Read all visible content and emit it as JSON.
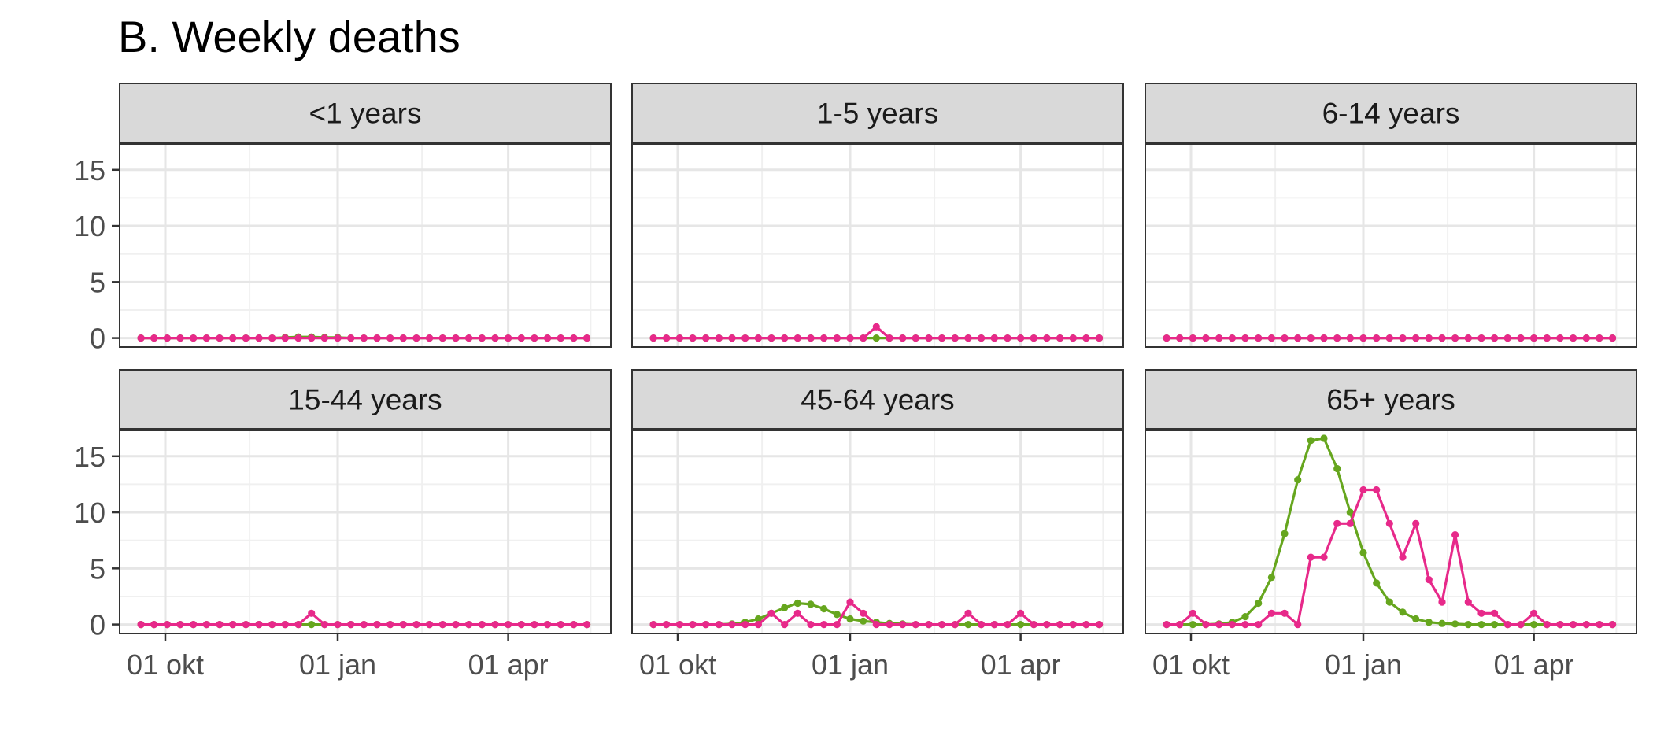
{
  "chart_data": {
    "type": "line",
    "title": "B. Weekly deaths",
    "xlabel": "",
    "ylabel": "",
    "x_tick_labels": [
      "01 okt",
      "01 jan",
      "01 apr"
    ],
    "y_ticks": [
      0,
      5,
      10,
      15
    ],
    "ylim": [
      -0.8,
      17.3
    ],
    "grid": true,
    "x_start": "2023-09-18",
    "x_step_days": 7,
    "colors": {
      "green": "#66a61e",
      "pink": "#e7298a"
    },
    "panels": [
      {
        "label": "<1 years",
        "series": [
          {
            "color": "#66a61e",
            "values": [
              0,
              0,
              0,
              0,
              0,
              0,
              0,
              0,
              0,
              0,
              0,
              0.05,
              0.1,
              0.1,
              0.05,
              0.05,
              0,
              0,
              0,
              0,
              0,
              0,
              0,
              0,
              0,
              0,
              0,
              0,
              0,
              0,
              0,
              0,
              0,
              0,
              0
            ]
          },
          {
            "color": "#e7298a",
            "values": [
              0,
              0,
              0,
              0,
              0,
              0,
              0,
              0,
              0,
              0,
              0,
              0,
              0,
              0,
              0,
              0,
              0,
              0,
              0,
              0,
              0,
              0,
              0,
              0,
              0,
              0,
              0,
              0,
              0,
              0,
              0,
              0,
              0,
              0,
              0
            ]
          }
        ]
      },
      {
        "label": "1-5 years",
        "series": [
          {
            "color": "#66a61e",
            "values": [
              0,
              0,
              0,
              0,
              0,
              0,
              0,
              0,
              0,
              0,
              0,
              0,
              0,
              0,
              0,
              0,
              0,
              0,
              0,
              0,
              0,
              0,
              0,
              0,
              0,
              0,
              0,
              0,
              0,
              0,
              0,
              0,
              0,
              0,
              0
            ]
          },
          {
            "color": "#e7298a",
            "values": [
              0,
              0,
              0,
              0,
              0,
              0,
              0,
              0,
              0,
              0,
              0,
              0,
              0,
              0,
              0,
              0,
              0,
              1,
              0,
              0,
              0,
              0,
              0,
              0,
              0,
              0,
              0,
              0,
              0,
              0,
              0,
              0,
              0,
              0,
              0
            ]
          }
        ]
      },
      {
        "label": "6-14 years",
        "series": [
          {
            "color": "#66a61e",
            "values": [
              0,
              0,
              0,
              0,
              0,
              0,
              0,
              0,
              0,
              0,
              0,
              0,
              0,
              0,
              0,
              0,
              0,
              0,
              0,
              0,
              0,
              0,
              0,
              0,
              0,
              0,
              0,
              0,
              0,
              0,
              0,
              0,
              0,
              0,
              0
            ]
          },
          {
            "color": "#e7298a",
            "values": [
              0,
              0,
              0,
              0,
              0,
              0,
              0,
              0,
              0,
              0,
              0,
              0,
              0,
              0,
              0,
              0,
              0,
              0,
              0,
              0,
              0,
              0,
              0,
              0,
              0,
              0,
              0,
              0,
              0,
              0,
              0,
              0,
              0,
              0,
              0
            ]
          }
        ]
      },
      {
        "label": "15-44 years",
        "series": [
          {
            "color": "#66a61e",
            "values": [
              0,
              0,
              0,
              0,
              0,
              0,
              0,
              0,
              0,
              0,
              0,
              0,
              0,
              0,
              0,
              0,
              0,
              0,
              0,
              0,
              0,
              0,
              0,
              0,
              0,
              0,
              0,
              0,
              0,
              0,
              0,
              0,
              0,
              0,
              0
            ]
          },
          {
            "color": "#e7298a",
            "values": [
              0,
              0,
              0,
              0,
              0,
              0,
              0,
              0,
              0,
              0,
              0,
              0,
              0,
              1,
              0,
              0,
              0,
              0,
              0,
              0,
              0,
              0,
              0,
              0,
              0,
              0,
              0,
              0,
              0,
              0,
              0,
              0,
              0,
              0,
              0
            ]
          }
        ]
      },
      {
        "label": "45-64 years",
        "series": [
          {
            "color": "#66a61e",
            "values": [
              0,
              0,
              0,
              0,
              0,
              0,
              0.05,
              0.2,
              0.5,
              1.0,
              1.5,
              1.9,
              1.8,
              1.4,
              0.9,
              0.5,
              0.3,
              0.2,
              0.1,
              0.05,
              0,
              0,
              0,
              0,
              0,
              0,
              0,
              0,
              0,
              0,
              0,
              0,
              0,
              0,
              0
            ]
          },
          {
            "color": "#e7298a",
            "values": [
              0,
              0,
              0,
              0,
              0,
              0,
              0,
              0,
              0,
              1,
              0,
              1,
              0,
              0,
              0,
              2,
              1,
              0,
              0,
              0,
              0,
              0,
              0,
              0,
              1,
              0,
              0,
              0,
              1,
              0,
              0,
              0,
              0,
              0,
              0
            ]
          }
        ]
      },
      {
        "label": "65+ years",
        "series": [
          {
            "color": "#66a61e",
            "values": [
              0,
              0,
              0,
              0,
              0.05,
              0.2,
              0.7,
              1.9,
              4.2,
              8.1,
              12.9,
              16.4,
              16.6,
              13.9,
              10.0,
              6.4,
              3.7,
              2.0,
              1.1,
              0.5,
              0.2,
              0.1,
              0.05,
              0,
              0,
              0,
              0,
              0,
              0,
              0,
              0,
              0,
              0,
              0,
              0
            ]
          },
          {
            "color": "#e7298a",
            "values": [
              0,
              0,
              1,
              0,
              0,
              0,
              0,
              0,
              1,
              1,
              0,
              6,
              6,
              9,
              9,
              12,
              12,
              9,
              6,
              9,
              4,
              2,
              8,
              2,
              1,
              1,
              0,
              0,
              1,
              0,
              0,
              0,
              0,
              0,
              0
            ]
          }
        ]
      }
    ]
  }
}
